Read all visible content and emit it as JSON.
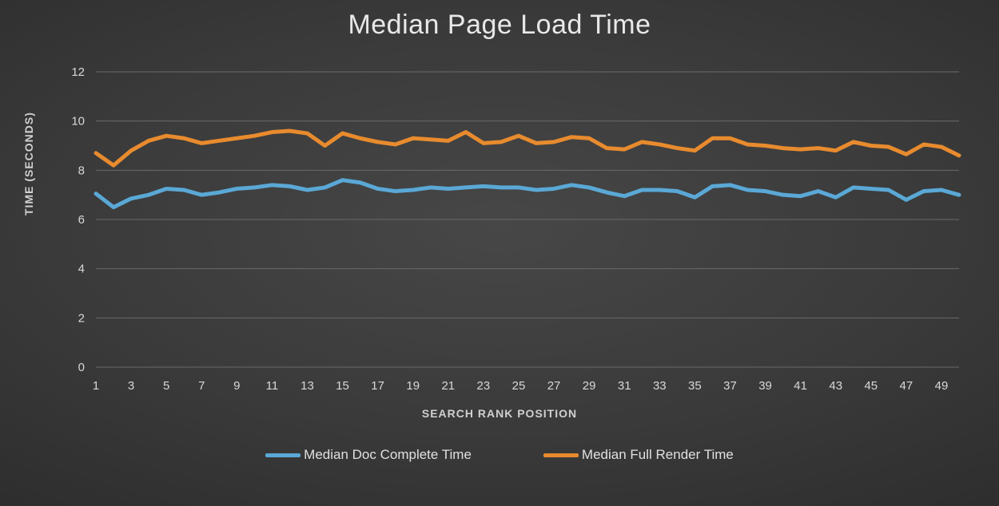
{
  "chart": {
    "type": "line",
    "title": "Median Page Load Time",
    "title_fontsize": 34,
    "title_color": "#e8e8e8",
    "y_axis_title": "TIME (SECONDS)",
    "x_axis_title": "SEARCH RANK POSITION",
    "axis_title_fontsize": 14,
    "axis_title_color": "#d0d0d0",
    "background_gradient_inner": "#474747",
    "background_gradient_outer": "#2a2a2a",
    "grid_color": "#6a6a6a",
    "tick_label_color": "#d8d8d8",
    "tick_label_fontsize": 15,
    "line_width": 5,
    "ylim": [
      0,
      12
    ],
    "yticks": [
      0,
      2,
      4,
      6,
      8,
      10,
      12
    ],
    "x_values": [
      1,
      2,
      3,
      4,
      5,
      6,
      7,
      8,
      9,
      10,
      11,
      12,
      13,
      14,
      15,
      16,
      17,
      18,
      19,
      20,
      21,
      22,
      23,
      24,
      25,
      26,
      27,
      28,
      29,
      30,
      31,
      32,
      33,
      34,
      35,
      36,
      37,
      38,
      39,
      40,
      41,
      42,
      43,
      44,
      45,
      46,
      47,
      48,
      49,
      50
    ],
    "xtick_labels": [
      "1",
      "3",
      "5",
      "7",
      "9",
      "11",
      "13",
      "15",
      "17",
      "19",
      "21",
      "23",
      "25",
      "27",
      "29",
      "31",
      "33",
      "35",
      "37",
      "39",
      "41",
      "43",
      "45",
      "47",
      "49"
    ],
    "xtick_values": [
      1,
      3,
      5,
      7,
      9,
      11,
      13,
      15,
      17,
      19,
      21,
      23,
      25,
      27,
      29,
      31,
      33,
      35,
      37,
      39,
      41,
      43,
      45,
      47,
      49
    ],
    "series": [
      {
        "name": "Median Doc Complete Time",
        "color": "#5aa8d6",
        "values": [
          7.05,
          6.5,
          6.85,
          7.0,
          7.25,
          7.2,
          7.0,
          7.1,
          7.25,
          7.3,
          7.4,
          7.35,
          7.2,
          7.3,
          7.6,
          7.5,
          7.25,
          7.15,
          7.2,
          7.3,
          7.25,
          7.3,
          7.35,
          7.3,
          7.3,
          7.2,
          7.25,
          7.4,
          7.3,
          7.1,
          6.95,
          7.2,
          7.2,
          7.15,
          6.9,
          7.35,
          7.4,
          7.2,
          7.15,
          7.0,
          6.95,
          7.15,
          6.9,
          7.3,
          7.25,
          7.2,
          6.8,
          7.15,
          7.2,
          7.0
        ]
      },
      {
        "name": "Median Full Render Time",
        "color": "#e88b2e",
        "values": [
          8.7,
          8.2,
          8.8,
          9.2,
          9.4,
          9.3,
          9.1,
          9.2,
          9.3,
          9.4,
          9.55,
          9.6,
          9.5,
          9.0,
          9.5,
          9.3,
          9.15,
          9.05,
          9.3,
          9.25,
          9.2,
          9.55,
          9.1,
          9.15,
          9.4,
          9.1,
          9.15,
          9.35,
          9.3,
          8.9,
          8.85,
          9.15,
          9.05,
          8.9,
          8.8,
          9.3,
          9.3,
          9.05,
          9.0,
          8.9,
          8.85,
          8.9,
          8.8,
          9.15,
          9.0,
          8.95,
          8.65,
          9.05,
          8.95,
          8.6
        ]
      }
    ],
    "legend": {
      "position": "bottom",
      "fontsize": 17,
      "text_color": "#e0e0e0",
      "swatch_width": 44,
      "swatch_height": 5
    }
  }
}
